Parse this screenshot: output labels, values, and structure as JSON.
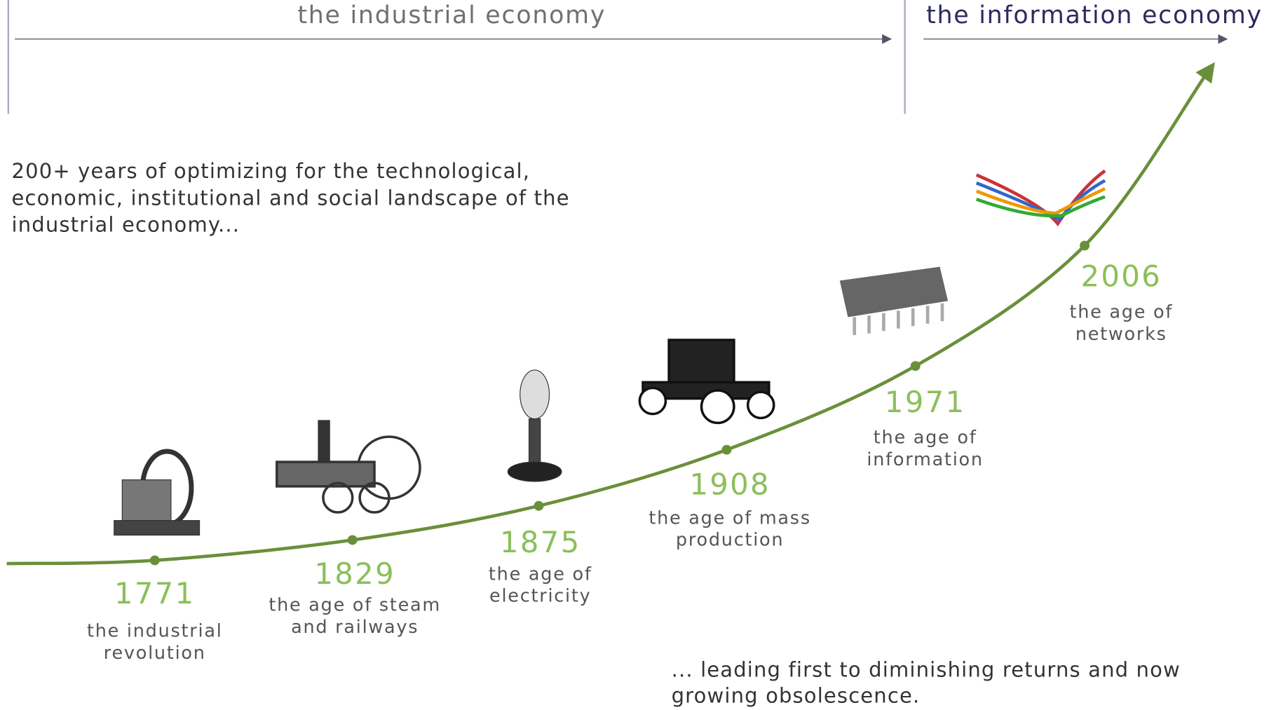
{
  "eras": [
    {
      "title": "the industrial economy"
    },
    {
      "title": "the information economy"
    }
  ],
  "intro": [
    "200+ years of optimizing for the technological,",
    "economic, institutional and social landscape of the",
    "industrial economy..."
  ],
  "milestones": [
    {
      "year": "1771",
      "label": [
        "the industrial",
        "revolution"
      ]
    },
    {
      "year": "1829",
      "label": [
        "the age of steam",
        "and railways"
      ]
    },
    {
      "year": "1875",
      "label": [
        "the age of",
        "electricity"
      ]
    },
    {
      "year": "1908",
      "label": [
        "the age of mass",
        "production"
      ]
    },
    {
      "year": "1971",
      "label": [
        "the age of",
        "information"
      ]
    },
    {
      "year": "2006",
      "label": [
        "the age of",
        "networks"
      ]
    }
  ],
  "closing": [
    "... leading first to diminishing returns and now",
    "growing obsolescence."
  ]
}
